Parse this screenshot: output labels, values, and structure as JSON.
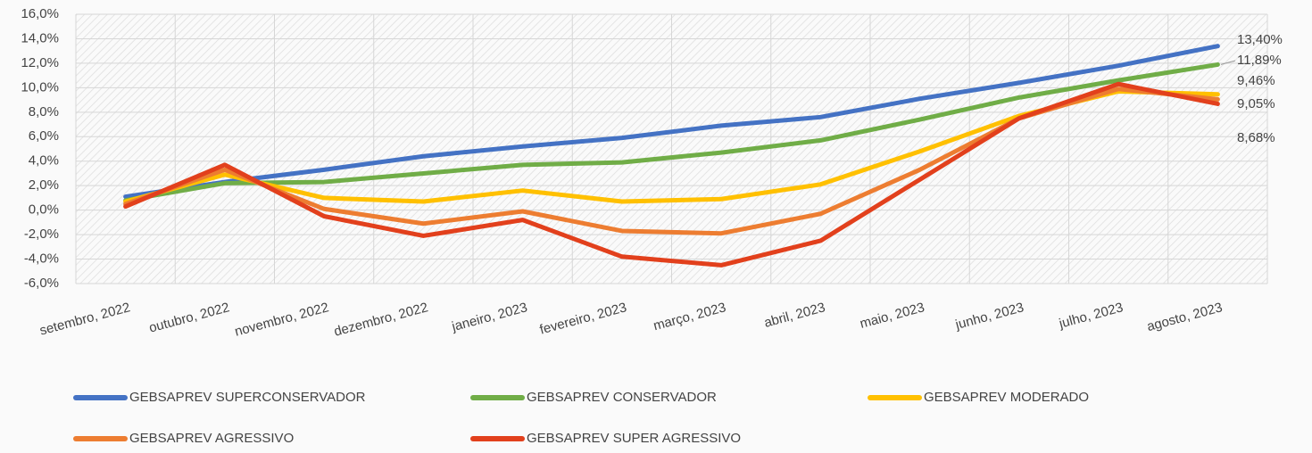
{
  "chart_data": {
    "type": "line",
    "categories": [
      "setembro, 2022",
      "outubro, 2022",
      "novembro, 2022",
      "dezembro, 2022",
      "janeiro, 2023",
      "fevereiro, 2023",
      "março, 2023",
      "abril, 2023",
      "maio, 2023",
      "junho, 2023",
      "julho, 2023",
      "agosto, 2023"
    ],
    "series": [
      {
        "name": "GEBSAPREV SUPERCONSERVADOR",
        "color": "#4472c4",
        "values": [
          1.1,
          2.3,
          3.3,
          4.4,
          5.2,
          5.9,
          6.9,
          7.6,
          9.1,
          10.4,
          11.8,
          13.4
        ],
        "value_labels": [
          null,
          null,
          null,
          null,
          null,
          null,
          null,
          null,
          null,
          null,
          null,
          "13,40%"
        ]
      },
      {
        "name": "GEBSAPREV CONSERVADOR",
        "color": "#70ad47",
        "values": [
          0.8,
          2.2,
          2.3,
          3.0,
          3.7,
          3.9,
          4.7,
          5.7,
          7.4,
          9.2,
          10.6,
          11.89
        ],
        "value_labels": [
          null,
          null,
          null,
          null,
          null,
          null,
          null,
          null,
          null,
          null,
          null,
          "11,89%"
        ]
      },
      {
        "name": "GEBSAPREV MODERADO",
        "color": "#ffc000",
        "values": [
          0.7,
          2.9,
          1.0,
          0.7,
          1.6,
          0.7,
          0.9,
          2.1,
          4.8,
          7.7,
          9.7,
          9.46
        ],
        "value_labels": [
          null,
          null,
          null,
          null,
          null,
          null,
          null,
          null,
          null,
          null,
          null,
          "9,46%"
        ]
      },
      {
        "name": "GEBSAPREV AGRESSIVO",
        "color": "#ed7d31",
        "values": [
          0.5,
          3.3,
          0.1,
          -1.1,
          -0.1,
          -1.7,
          -1.9,
          -0.3,
          3.3,
          7.5,
          9.9,
          9.05
        ],
        "value_labels": [
          null,
          null,
          null,
          null,
          null,
          null,
          null,
          null,
          null,
          null,
          null,
          "9,05%"
        ]
      },
      {
        "name": "GEBSAPREV SUPER AGRESSIVO",
        "color": "#e2401c",
        "values": [
          0.3,
          3.7,
          -0.5,
          -2.1,
          -0.8,
          -3.8,
          -4.5,
          -2.5,
          2.5,
          7.5,
          10.3,
          8.68
        ],
        "value_labels": [
          null,
          null,
          null,
          null,
          null,
          null,
          null,
          null,
          null,
          null,
          null,
          "8,68%"
        ]
      }
    ],
    "ylim": [
      -6,
      16
    ],
    "yticks": [
      {
        "value": -6,
        "label": "-6,0%"
      },
      {
        "value": -4,
        "label": "-4,0%"
      },
      {
        "value": -2,
        "label": "-2,0%"
      },
      {
        "value": 0,
        "label": "0,0%"
      },
      {
        "value": 2,
        "label": "2,0%"
      },
      {
        "value": 4,
        "label": "4,0%"
      },
      {
        "value": 6,
        "label": "6,0%"
      },
      {
        "value": 8,
        "label": "8,0%"
      },
      {
        "value": 10,
        "label": "10,0%"
      },
      {
        "value": 12,
        "label": "12,0%"
      },
      {
        "value": 14,
        "label": "14,0%"
      },
      {
        "value": 16,
        "label": "16,0%"
      }
    ],
    "grid": true,
    "legend": "bottom"
  }
}
